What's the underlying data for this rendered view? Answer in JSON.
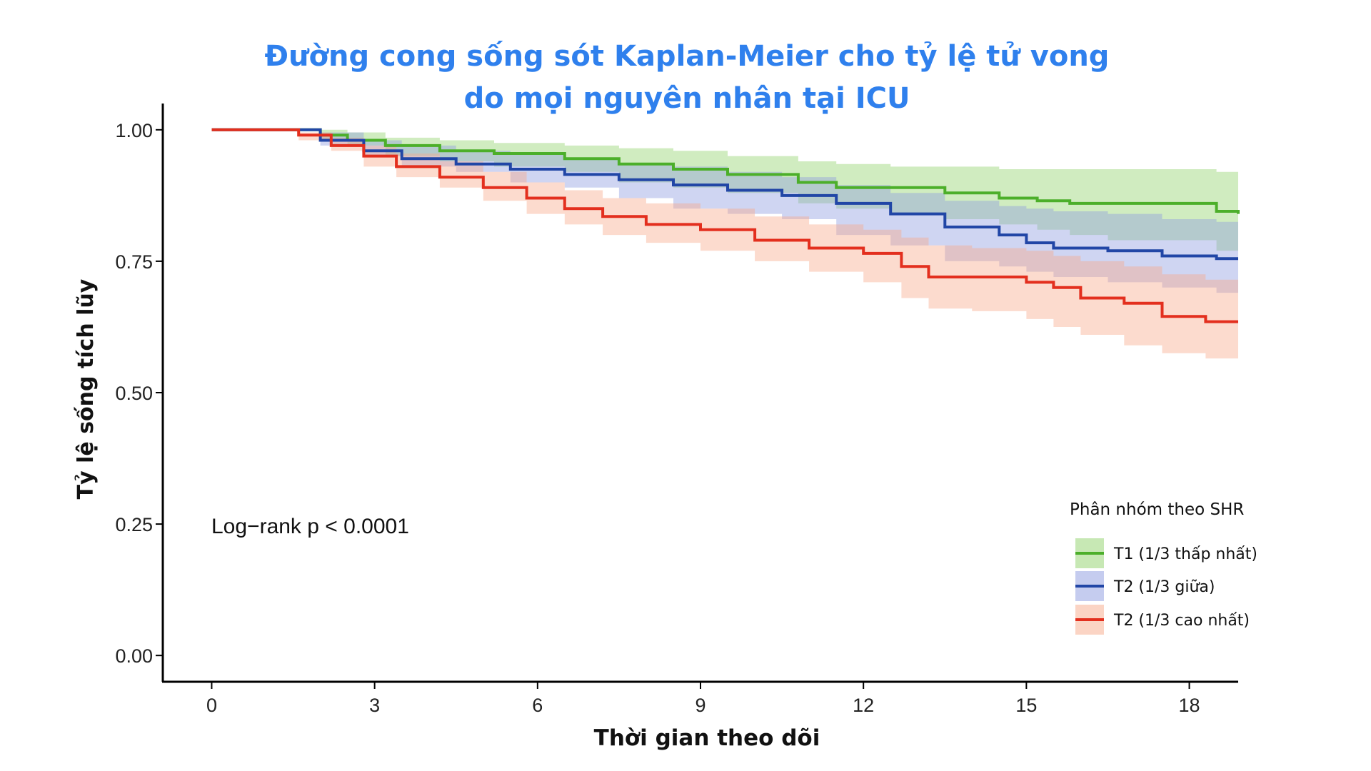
{
  "chart_data": {
    "type": "line",
    "title_line1": "Đường cong sống sót Kaplan-Meier cho tỷ lệ tử vong",
    "title_line2": "do mọi nguyên nhân tại ICU",
    "xlabel": "Thời gian theo dõi",
    "ylabel": "Tỷ lệ sống tích lũy",
    "xlim": [
      -0.9,
      18.9
    ],
    "ylim": [
      -0.05,
      1.05
    ],
    "x_ticks": [
      0,
      3,
      6,
      9,
      12,
      15,
      18
    ],
    "x_tick_labels": [
      "0",
      "3",
      "6",
      "9",
      "12",
      "15",
      "18"
    ],
    "y_ticks": [
      0,
      0.25,
      0.5,
      0.75,
      1.0
    ],
    "y_tick_labels": [
      "0.00",
      "0.25",
      "0.50",
      "0.75",
      "1.00"
    ],
    "annotation": "Log−rank p < 0.0001",
    "legend_title": "Phân nhóm theo SHR",
    "legend_position": "bottom-right",
    "grid": false,
    "step": true,
    "series": [
      {
        "name": "T1 (1/3 thấp nhất)",
        "color": "#4caf2a",
        "band_color": "#8fd16a",
        "x": [
          0,
          1.2,
          2.0,
          2.5,
          3.2,
          4.2,
          5.2,
          6.5,
          7.5,
          8.5,
          9.5,
          10.8,
          11.5,
          12.5,
          13.5,
          14.5,
          15.2,
          15.8,
          16.5,
          17.5,
          18.5,
          18.9
        ],
        "y": [
          1.0,
          1.0,
          0.99,
          0.98,
          0.97,
          0.96,
          0.955,
          0.945,
          0.935,
          0.925,
          0.915,
          0.9,
          0.89,
          0.89,
          0.88,
          0.87,
          0.865,
          0.86,
          0.86,
          0.86,
          0.845,
          0.84
        ],
        "lower": [
          1.0,
          1.0,
          0.98,
          0.97,
          0.95,
          0.94,
          0.93,
          0.92,
          0.9,
          0.89,
          0.88,
          0.86,
          0.85,
          0.84,
          0.83,
          0.82,
          0.81,
          0.8,
          0.79,
          0.79,
          0.77,
          0.76
        ],
        "upper": [
          1.0,
          1.0,
          1.0,
          0.995,
          0.985,
          0.98,
          0.975,
          0.97,
          0.965,
          0.96,
          0.95,
          0.94,
          0.935,
          0.93,
          0.93,
          0.925,
          0.925,
          0.925,
          0.925,
          0.925,
          0.92,
          0.92
        ]
      },
      {
        "name": "T2 (1/3 giữa)",
        "color": "#2146a6",
        "band_color": "#8c9ae0",
        "x": [
          0,
          1.2,
          2.0,
          2.8,
          3.5,
          4.5,
          5.5,
          6.5,
          7.5,
          8.5,
          9.5,
          10.5,
          11.5,
          12.5,
          13.5,
          14.5,
          15.0,
          15.5,
          16.5,
          17.5,
          18.5,
          18.9
        ],
        "y": [
          1.0,
          1.0,
          0.98,
          0.96,
          0.945,
          0.935,
          0.925,
          0.915,
          0.905,
          0.895,
          0.885,
          0.875,
          0.86,
          0.84,
          0.815,
          0.8,
          0.785,
          0.775,
          0.77,
          0.76,
          0.755,
          0.755
        ],
        "lower": [
          1.0,
          1.0,
          0.97,
          0.95,
          0.93,
          0.92,
          0.9,
          0.89,
          0.87,
          0.85,
          0.84,
          0.83,
          0.8,
          0.78,
          0.75,
          0.74,
          0.73,
          0.72,
          0.71,
          0.7,
          0.69,
          0.69
        ],
        "upper": [
          1.0,
          1.0,
          0.995,
          0.98,
          0.97,
          0.96,
          0.955,
          0.945,
          0.935,
          0.93,
          0.92,
          0.91,
          0.895,
          0.88,
          0.865,
          0.855,
          0.85,
          0.845,
          0.84,
          0.83,
          0.825,
          0.825
        ]
      },
      {
        "name": "T2 (1/3 cao nhất)",
        "color": "#e32f1e",
        "band_color": "#f7a98a",
        "x": [
          0,
          1.0,
          1.6,
          2.2,
          2.8,
          3.4,
          4.2,
          5.0,
          5.8,
          6.5,
          7.2,
          8.0,
          9.0,
          10.0,
          11.0,
          12.0,
          12.7,
          13.2,
          14.0,
          15.0,
          15.5,
          16.0,
          16.8,
          17.5,
          18.3,
          18.9
        ],
        "y": [
          1.0,
          1.0,
          0.99,
          0.97,
          0.95,
          0.93,
          0.91,
          0.89,
          0.87,
          0.85,
          0.835,
          0.82,
          0.81,
          0.79,
          0.775,
          0.765,
          0.74,
          0.72,
          0.72,
          0.71,
          0.7,
          0.68,
          0.67,
          0.645,
          0.635,
          0.635
        ],
        "lower": [
          1.0,
          1.0,
          0.98,
          0.96,
          0.93,
          0.91,
          0.89,
          0.865,
          0.84,
          0.82,
          0.8,
          0.785,
          0.77,
          0.75,
          0.73,
          0.71,
          0.68,
          0.66,
          0.655,
          0.64,
          0.625,
          0.61,
          0.59,
          0.575,
          0.565,
          0.565
        ],
        "upper": [
          1.0,
          1.0,
          0.995,
          0.985,
          0.97,
          0.955,
          0.94,
          0.92,
          0.9,
          0.885,
          0.87,
          0.86,
          0.85,
          0.835,
          0.82,
          0.81,
          0.795,
          0.78,
          0.775,
          0.77,
          0.76,
          0.75,
          0.74,
          0.725,
          0.715,
          0.715
        ]
      }
    ]
  }
}
